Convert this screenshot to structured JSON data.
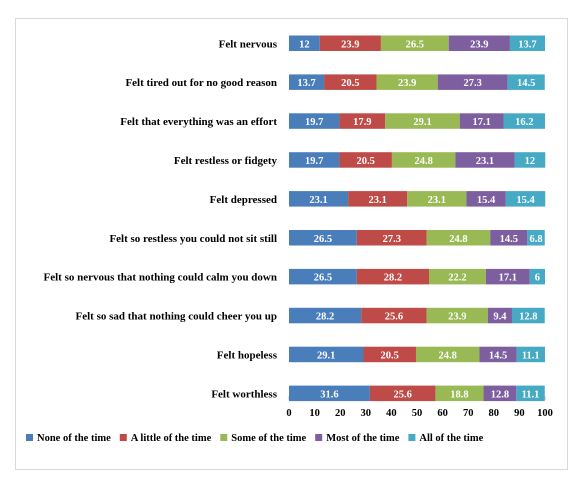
{
  "chart_data": {
    "type": "bar",
    "stacked": true,
    "orientation": "horizontal",
    "categories": [
      "Felt nervous",
      "Felt tired out for no good reason",
      "Felt that everything was an effort",
      "Felt restless or fidgety",
      "Felt depressed",
      "Felt so restless you could not sit still",
      "Felt so nervous that nothing could calm you down",
      "Felt so sad that nothing could cheer you up",
      "Felt hopeless",
      "Felt worthless"
    ],
    "series": [
      {
        "name": "None of the time",
        "color": "#4a7ebb",
        "values": [
          12,
          13.7,
          19.7,
          19.7,
          23.1,
          26.5,
          26.5,
          28.2,
          29.1,
          31.6
        ]
      },
      {
        "name": "A little of the time",
        "color": "#be4b48",
        "values": [
          23.9,
          20.5,
          17.9,
          20.5,
          23.1,
          27.3,
          28.2,
          25.6,
          20.5,
          25.6
        ]
      },
      {
        "name": "Some of the time",
        "color": "#98b954",
        "values": [
          26.5,
          23.9,
          29.1,
          24.8,
          23.1,
          24.8,
          22.2,
          23.9,
          24.8,
          18.8
        ]
      },
      {
        "name": "Most of the time",
        "color": "#7d5fa0",
        "values": [
          23.9,
          27.3,
          17.1,
          23.1,
          15.4,
          14.5,
          17.1,
          9.4,
          14.5,
          12.8
        ]
      },
      {
        "name": "All of the time",
        "color": "#46aac5",
        "values": [
          13.7,
          14.5,
          16.2,
          12,
          15.4,
          6.8,
          6,
          12.8,
          11.1,
          11.1
        ]
      }
    ],
    "xlim": [
      0,
      100
    ],
    "xticks": [
      0,
      10,
      20,
      30,
      40,
      50,
      60,
      70,
      80,
      90,
      100
    ],
    "legend_position": "bottom",
    "title": "",
    "xlabel": "",
    "ylabel": ""
  }
}
